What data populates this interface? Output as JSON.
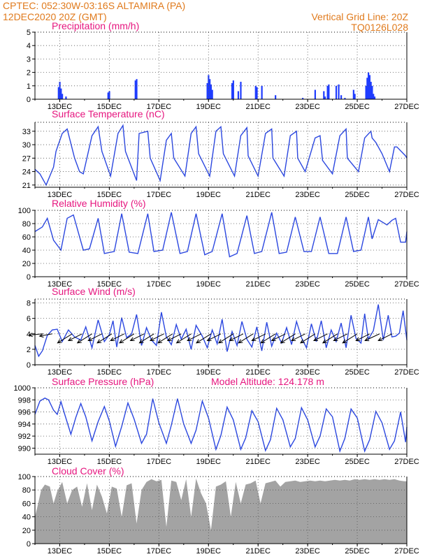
{
  "header": {
    "line1_left": "CPTEC:   052:30W-03:16S   ALTAMIRA (PA)",
    "line2_left": "12DEC2020 20Z (GMT)",
    "line1_right": "Vertical Grid Line: 20Z",
    "line2_right": "TQ0126L028"
  },
  "x_labels": [
    "13DEC",
    "15DEC",
    "17DEC",
    "19DEC",
    "21DEC",
    "23DEC",
    "25DEC",
    "27DEC"
  ],
  "colors": {
    "header": "#e07a1c",
    "title": "#e6167f",
    "series": "#2b47e0",
    "cloud": "#a3a3a3"
  },
  "chart_data": [
    {
      "type": "bar",
      "title": "Precipitation (mm/h)",
      "ylim": [
        0,
        5
      ],
      "yticks": [
        0,
        1,
        2,
        3,
        4,
        5
      ],
      "grid": true,
      "x": [
        12.95,
        13.0,
        13.05,
        13.1,
        13.25,
        14.95,
        15.0,
        16.05,
        16.1,
        18.95,
        19.0,
        19.05,
        19.1,
        19.15,
        19.95,
        20.0,
        20.2,
        20.3,
        20.9,
        20.95,
        21.15,
        21.7,
        22.8,
        23.3,
        23.65,
        23.7,
        23.8,
        23.85,
        24.15,
        24.25,
        24.35,
        24.5,
        24.85,
        24.9,
        25.35,
        25.4,
        25.45,
        25.5,
        25.55,
        25.6,
        25.65,
        25.7
      ],
      "values": [
        0.9,
        1.3,
        0.8,
        0.4,
        0.2,
        0.5,
        0.6,
        1.4,
        1.5,
        1.2,
        1.8,
        1.5,
        1.1,
        0.7,
        1.2,
        1.4,
        0.6,
        1.3,
        1.0,
        0.9,
        1.0,
        0.3,
        0.1,
        0.7,
        0.6,
        0.2,
        1.0,
        1.1,
        1.0,
        1.1,
        0.3,
        0.1,
        0.7,
        0.4,
        1.0,
        1.6,
        2.0,
        1.8,
        1.3,
        1.0,
        0.4,
        0.2
      ]
    },
    {
      "type": "line",
      "title": "Surface Temperature (nC)",
      "ylim": [
        20.5,
        35
      ],
      "yticks": [
        21,
        24,
        27,
        30,
        33
      ],
      "grid": true,
      "x": [
        12.0,
        12.2,
        12.45,
        12.75,
        12.85,
        13.1,
        13.3,
        13.6,
        13.8,
        13.95,
        14.3,
        14.55,
        14.7,
        15.05,
        15.35,
        15.55,
        15.65,
        16.1,
        16.2,
        16.55,
        16.65,
        17.05,
        17.3,
        17.5,
        17.6,
        18.05,
        18.3,
        18.5,
        18.6,
        19.05,
        19.3,
        19.5,
        19.6,
        20.05,
        20.3,
        20.55,
        20.6,
        21.0,
        21.3,
        21.55,
        21.6,
        22.05,
        22.3,
        22.55,
        22.6,
        22.9,
        23.3,
        23.5,
        23.6,
        24.0,
        24.3,
        24.55,
        24.6,
        25.05,
        25.3,
        25.55,
        25.6,
        25.75,
        26.0,
        26.3,
        26.5,
        26.6,
        26.95,
        27.0
      ],
      "values": [
        24.5,
        23.5,
        21.0,
        25.0,
        28.5,
        32.5,
        33.5,
        27.0,
        24.0,
        23.5,
        32.0,
        34.0,
        28.5,
        23.0,
        32.5,
        34.3,
        28.5,
        22.0,
        32.5,
        33.0,
        27.0,
        22.0,
        31.0,
        32.5,
        27.0,
        23.0,
        32.5,
        34.0,
        28.0,
        23.0,
        33.0,
        34.0,
        28.0,
        23.0,
        32.0,
        33.8,
        27.5,
        23.0,
        32.5,
        33.5,
        27.0,
        23.0,
        32.0,
        33.0,
        27.0,
        24.0,
        31.5,
        32.0,
        26.5,
        23.5,
        32.0,
        33.5,
        27.0,
        24.0,
        31.5,
        33.0,
        31.5,
        30.5,
        28.0,
        24.0,
        29.5,
        29.5,
        27.5,
        27.0
      ]
    },
    {
      "type": "line",
      "title": "Relative Humidity (%)",
      "ylim": [
        0,
        100
      ],
      "yticks": [
        0,
        20,
        40,
        60,
        80,
        100
      ],
      "grid": true,
      "x": [
        12.0,
        12.3,
        12.5,
        12.75,
        13.05,
        13.3,
        13.55,
        13.95,
        14.2,
        14.55,
        14.8,
        15.2,
        15.5,
        15.8,
        16.15,
        16.55,
        16.8,
        17.15,
        17.5,
        17.85,
        18.15,
        18.5,
        18.85,
        19.15,
        19.55,
        19.85,
        20.15,
        20.55,
        20.85,
        21.15,
        21.55,
        21.85,
        22.15,
        22.5,
        22.85,
        23.15,
        23.5,
        23.85,
        24.2,
        24.55,
        24.85,
        25.15,
        25.45,
        25.6,
        25.85,
        26.2,
        26.4,
        26.55,
        26.75,
        26.95,
        27.0
      ],
      "values": [
        68,
        75,
        88,
        55,
        40,
        88,
        93,
        40,
        42,
        88,
        35,
        38,
        95,
        37,
        35,
        95,
        38,
        40,
        97,
        35,
        38,
        95,
        33,
        38,
        95,
        30,
        35,
        92,
        35,
        38,
        97,
        35,
        37,
        90,
        38,
        38,
        90,
        35,
        35,
        90,
        38,
        40,
        90,
        57,
        86,
        78,
        85,
        88,
        52,
        52,
        68
      ]
    },
    {
      "type": "line",
      "title": "Surface Wind (m/s)",
      "ylim": [
        0,
        8.5
      ],
      "yticks": [
        0,
        2,
        4,
        6,
        8
      ],
      "grid": true,
      "x": [
        12.0,
        12.15,
        12.3,
        12.5,
        12.7,
        12.9,
        13.1,
        13.35,
        13.6,
        13.85,
        14.05,
        14.3,
        14.55,
        14.8,
        15.0,
        15.15,
        15.3,
        15.5,
        15.7,
        15.9,
        16.1,
        16.3,
        16.5,
        16.7,
        16.9,
        17.1,
        17.3,
        17.5,
        17.7,
        17.9,
        18.1,
        18.3,
        18.5,
        18.75,
        18.95,
        19.15,
        19.35,
        19.55,
        19.75,
        19.95,
        20.15,
        20.35,
        20.55,
        20.75,
        20.95,
        21.15,
        21.35,
        21.55,
        21.75,
        21.95,
        22.15,
        22.35,
        22.55,
        22.75,
        22.95,
        23.15,
        23.35,
        23.55,
        23.75,
        23.95,
        24.15,
        24.35,
        24.55,
        24.75,
        24.95,
        25.15,
        25.3,
        25.45,
        25.65,
        25.85,
        26.05,
        26.25,
        26.4,
        26.55,
        26.7,
        26.85,
        27.0
      ],
      "values": [
        2.5,
        1.1,
        1.8,
        3.8,
        4.5,
        4.6,
        3.0,
        4.5,
        3.6,
        3.2,
        4.9,
        2.2,
        5.8,
        3.0,
        3.9,
        5.7,
        2.3,
        6.1,
        3.5,
        4.0,
        6.5,
        2.5,
        4.8,
        3.2,
        2.5,
        6.8,
        3.6,
        2.6,
        5.2,
        3.3,
        4.6,
        2.0,
        5.1,
        3.7,
        2.2,
        4.5,
        2.7,
        5.9,
        1.7,
        4.3,
        2.5,
        5.6,
        3.3,
        2.3,
        4.9,
        1.8,
        5.5,
        2.4,
        4.1,
        2.8,
        4.8,
        2.6,
        5.6,
        3.5,
        2.2,
        5.3,
        3.0,
        5.7,
        2.2,
        4.5,
        3.0,
        5.4,
        2.2,
        6.4,
        3.4,
        2.8,
        6.6,
        3.3,
        4.4,
        7.8,
        3.2,
        6.4,
        3.6,
        3.7,
        4.1,
        7.0,
        3.2
      ],
      "arrows": {
        "x": [
          12.3,
          12.7,
          13.5,
          13.9,
          14.3,
          14.7,
          15.1,
          15.6,
          16.0,
          16.4,
          16.8,
          17.2,
          17.55,
          17.9,
          18.3,
          18.7,
          19.1,
          19.5,
          20.0,
          20.4,
          20.8,
          21.3,
          21.7,
          22.1,
          22.5,
          22.9,
          23.3,
          23.8,
          24.2,
          24.6,
          25.0,
          25.5,
          25.9,
          26.4
        ],
        "u": [
          -3.0,
          -2.8,
          -3.2,
          -3.0,
          -3.2,
          -3.0,
          -3.2,
          -3.0,
          -3.2,
          -3.0,
          -3.2,
          -3.0,
          -3.2,
          -3.0,
          -3.2,
          -3.0,
          -3.2,
          -3.0,
          -3.2,
          -3.0,
          -3.2,
          -3.0,
          -3.2,
          -3.0,
          -3.2,
          -3.0,
          -3.2,
          -3.0,
          -3.2,
          -3.0,
          -3.2,
          -3.0,
          -3.2,
          -3.0
        ],
        "v": [
          -0.3,
          -0.5,
          -2.0,
          -1.5,
          -2.0,
          -1.5,
          -2.0,
          -1.5,
          -2.0,
          -1.5,
          -2.0,
          -1.5,
          -2.0,
          -1.5,
          -2.0,
          -1.5,
          -2.0,
          -1.5,
          -2.0,
          -1.5,
          -2.0,
          -1.5,
          -2.0,
          -1.5,
          -2.0,
          -1.5,
          -2.0,
          -1.5,
          -2.0,
          -1.5,
          -2.0,
          -1.5,
          -1.5,
          -1.5
        ]
      }
    },
    {
      "type": "line",
      "title": "Surface Pressure (hPa)",
      "annotation": "Model Altitude: 124.178 m",
      "ylim": [
        989,
        1000
      ],
      "yticks": [
        990,
        992,
        994,
        996,
        998,
        1000
      ],
      "grid": true,
      "x": [
        12.0,
        12.2,
        12.4,
        12.55,
        12.75,
        12.9,
        13.05,
        13.2,
        13.45,
        13.65,
        13.85,
        14.05,
        14.3,
        14.55,
        14.8,
        15.0,
        15.25,
        15.5,
        15.75,
        16.0,
        16.3,
        16.5,
        16.75,
        17.0,
        17.3,
        17.5,
        17.75,
        18.0,
        18.3,
        18.5,
        18.75,
        19.0,
        19.3,
        19.5,
        19.75,
        20.0,
        20.3,
        20.5,
        20.75,
        21.0,
        21.3,
        21.5,
        21.75,
        22.0,
        22.3,
        22.5,
        22.75,
        23.0,
        23.3,
        23.5,
        23.75,
        24.0,
        24.3,
        24.5,
        24.75,
        25.0,
        25.3,
        25.5,
        25.75,
        26.0,
        26.3,
        26.5,
        26.75,
        26.95,
        27.0
      ],
      "values": [
        995.6,
        997.8,
        998.3,
        998.0,
        996.3,
        995.6,
        997.7,
        995.6,
        992.3,
        995.1,
        997.4,
        995.2,
        991.2,
        994.4,
        996.9,
        994.5,
        990.3,
        993.6,
        997.5,
        994.8,
        990.8,
        992.3,
        998.2,
        994.2,
        990.8,
        993.8,
        998.2,
        994.0,
        990.8,
        993.0,
        997.8,
        995.0,
        989.8,
        992.1,
        996.8,
        994.7,
        989.8,
        991.7,
        996.2,
        994.4,
        989.6,
        991.4,
        996.6,
        994.7,
        990.2,
        991.6,
        996.7,
        994.7,
        990.2,
        992.0,
        996.5,
        995.2,
        989.5,
        991.6,
        996.5,
        995.0,
        989.5,
        991.4,
        996.1,
        994.2,
        989.8,
        991.2,
        996.0,
        991.0,
        993.5
      ]
    },
    {
      "type": "area",
      "title": "Cloud Cover (%)",
      "ylim": [
        0,
        100
      ],
      "yticks": [
        0,
        20,
        40,
        60,
        80,
        100
      ],
      "grid": true,
      "x": [
        12.0,
        12.1,
        12.25,
        12.4,
        12.6,
        12.75,
        12.9,
        13.1,
        13.3,
        13.5,
        13.7,
        13.9,
        14.1,
        14.3,
        14.5,
        14.7,
        14.9,
        15.1,
        15.3,
        15.5,
        15.7,
        15.9,
        16.1,
        16.3,
        16.5,
        16.7,
        16.9,
        17.1,
        17.3,
        17.5,
        17.7,
        17.9,
        18.1,
        18.3,
        18.5,
        18.7,
        18.9,
        19.1,
        19.3,
        19.5,
        19.7,
        19.9,
        20.1,
        20.3,
        20.5,
        20.7,
        20.9,
        21.1,
        21.3,
        21.5,
        21.7,
        21.9,
        22.1,
        22.3,
        22.5,
        22.7,
        22.9,
        23.1,
        23.3,
        23.5,
        23.7,
        23.9,
        24.1,
        24.3,
        24.5,
        24.7,
        24.9,
        25.1,
        25.3,
        25.5,
        25.7,
        25.9,
        26.1,
        26.3,
        26.5,
        26.7,
        26.9,
        27.0
      ],
      "values": [
        40,
        55,
        80,
        88,
        85,
        60,
        78,
        92,
        60,
        80,
        85,
        55,
        90,
        50,
        88,
        70,
        45,
        85,
        82,
        40,
        87,
        90,
        30,
        80,
        92,
        96,
        93,
        95,
        25,
        94,
        92,
        65,
        96,
        40,
        97,
        75,
        60,
        20,
        85,
        88,
        93,
        40,
        92,
        60,
        88,
        90,
        94,
        60,
        90,
        92,
        94,
        85,
        92,
        93,
        94,
        92,
        93,
        94,
        93,
        94,
        93,
        94,
        95,
        94,
        95,
        94,
        96,
        95,
        96,
        95,
        96,
        95,
        96,
        95,
        96,
        94,
        93,
        93
      ]
    }
  ]
}
